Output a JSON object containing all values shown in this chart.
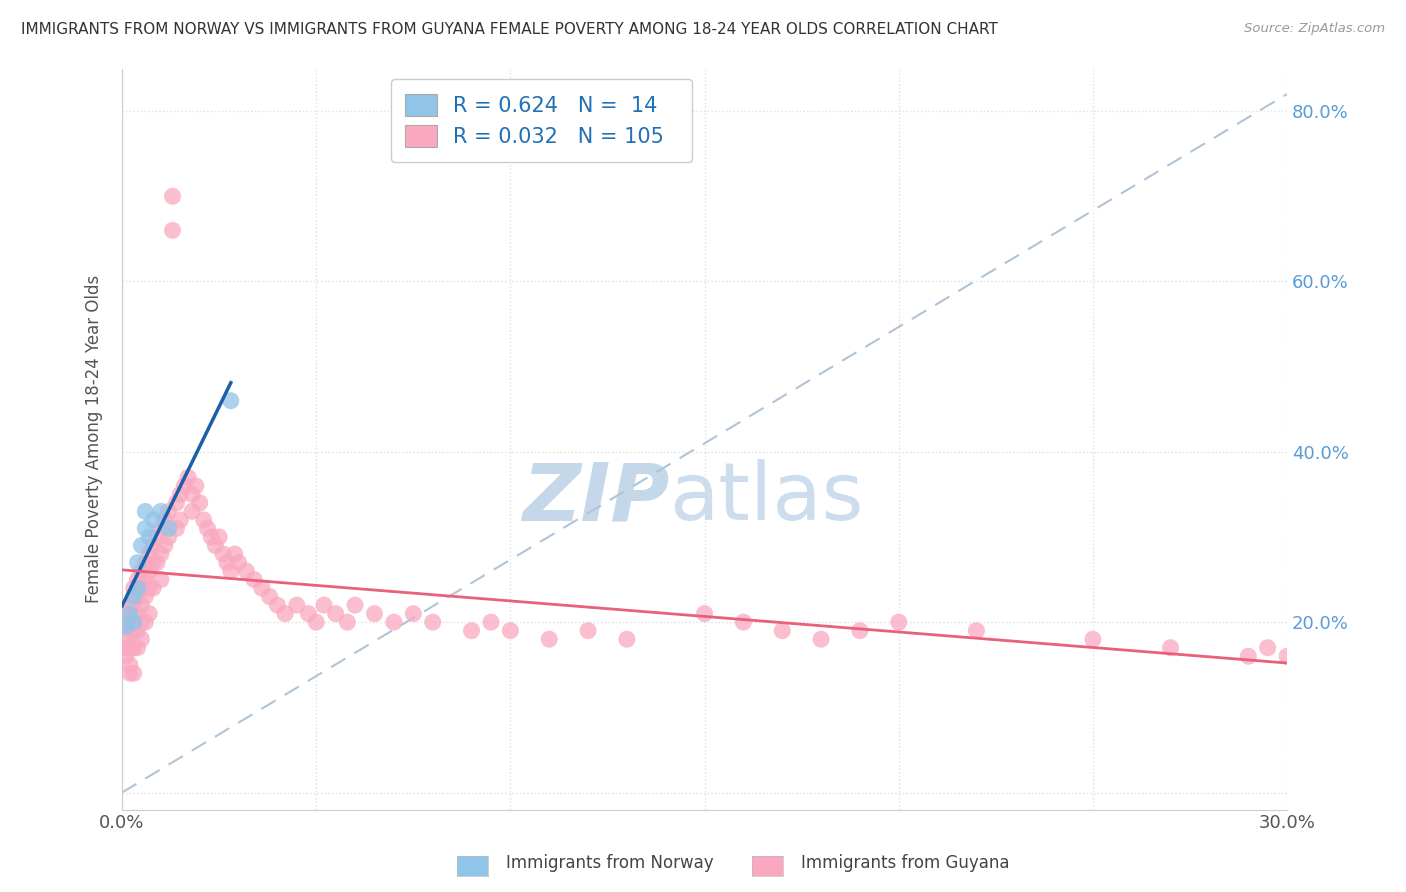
{
  "title": "IMMIGRANTS FROM NORWAY VS IMMIGRANTS FROM GUYANA FEMALE POVERTY AMONG 18-24 YEAR OLDS CORRELATION CHART",
  "source": "Source: ZipAtlas.com",
  "ylabel": "Female Poverty Among 18-24 Year Olds",
  "xlim": [
    0.0,
    0.3
  ],
  "ylim": [
    -0.02,
    0.85
  ],
  "norway_R": 0.624,
  "norway_N": 14,
  "guyana_R": 0.032,
  "guyana_N": 105,
  "norway_color": "#90c4e8",
  "guyana_color": "#f9a8c0",
  "norway_line_color": "#1a5fa8",
  "guyana_line_color": "#e8607a",
  "norway_x": [
    0.001,
    0.002,
    0.003,
    0.003,
    0.004,
    0.004,
    0.005,
    0.006,
    0.006,
    0.007,
    0.008,
    0.01,
    0.012,
    0.028
  ],
  "norway_y": [
    0.195,
    0.21,
    0.2,
    0.23,
    0.24,
    0.27,
    0.29,
    0.31,
    0.33,
    0.3,
    0.32,
    0.33,
    0.31,
    0.46
  ],
  "guyana_x_cluster": [
    0.001,
    0.001,
    0.001,
    0.001,
    0.001,
    0.002,
    0.002,
    0.002,
    0.002,
    0.002,
    0.002,
    0.003,
    0.003,
    0.003,
    0.003,
    0.003,
    0.003,
    0.004,
    0.004,
    0.004,
    0.004,
    0.004,
    0.005,
    0.005,
    0.005,
    0.005,
    0.005,
    0.006,
    0.006,
    0.006,
    0.006,
    0.007,
    0.007,
    0.007,
    0.007,
    0.008,
    0.008,
    0.008,
    0.009,
    0.009,
    0.01,
    0.01,
    0.01,
    0.011,
    0.011,
    0.012,
    0.012,
    0.013,
    0.013,
    0.014,
    0.014,
    0.015,
    0.015,
    0.016,
    0.017,
    0.018,
    0.018,
    0.019,
    0.02,
    0.021,
    0.022,
    0.023,
    0.024,
    0.025,
    0.026,
    0.027,
    0.028,
    0.029,
    0.03,
    0.032,
    0.034,
    0.036,
    0.038,
    0.04,
    0.042,
    0.045,
    0.048,
    0.05,
    0.052,
    0.055,
    0.058,
    0.06,
    0.065,
    0.07,
    0.075,
    0.08,
    0.09,
    0.095,
    0.1,
    0.11,
    0.12,
    0.13,
    0.15,
    0.16,
    0.17,
    0.18,
    0.19,
    0.2,
    0.22,
    0.25,
    0.27,
    0.29,
    0.295,
    0.3,
    0.305
  ],
  "guyana_y_cluster": [
    0.21,
    0.2,
    0.18,
    0.17,
    0.16,
    0.22,
    0.2,
    0.19,
    0.17,
    0.15,
    0.14,
    0.24,
    0.22,
    0.2,
    0.19,
    0.17,
    0.14,
    0.25,
    0.23,
    0.21,
    0.19,
    0.17,
    0.26,
    0.24,
    0.22,
    0.2,
    0.18,
    0.27,
    0.25,
    0.23,
    0.2,
    0.28,
    0.26,
    0.24,
    0.21,
    0.29,
    0.27,
    0.24,
    0.3,
    0.27,
    0.31,
    0.28,
    0.25,
    0.32,
    0.29,
    0.33,
    0.3,
    0.66,
    0.7,
    0.34,
    0.31,
    0.35,
    0.32,
    0.36,
    0.37,
    0.35,
    0.33,
    0.36,
    0.34,
    0.32,
    0.31,
    0.3,
    0.29,
    0.3,
    0.28,
    0.27,
    0.26,
    0.28,
    0.27,
    0.26,
    0.25,
    0.24,
    0.23,
    0.22,
    0.21,
    0.22,
    0.21,
    0.2,
    0.22,
    0.21,
    0.2,
    0.22,
    0.21,
    0.2,
    0.21,
    0.2,
    0.19,
    0.2,
    0.19,
    0.18,
    0.19,
    0.18,
    0.21,
    0.2,
    0.19,
    0.18,
    0.19,
    0.2,
    0.19,
    0.18,
    0.17,
    0.16,
    0.17,
    0.16,
    0.15
  ],
  "watermark_zip": "ZIP",
  "watermark_atlas": "atlas",
  "watermark_color": "#c5d8ea",
  "background_color": "#ffffff",
  "grid_color": "#e0e0e0",
  "ref_line_color": "#b0c4d8"
}
